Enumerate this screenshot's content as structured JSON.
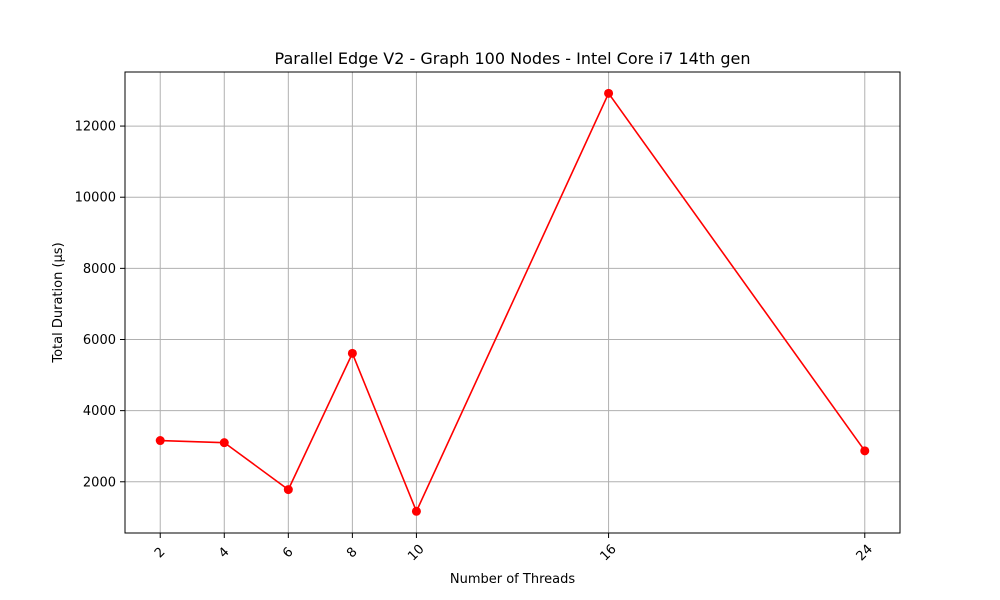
{
  "chart_data": {
    "type": "line",
    "title": "Parallel Edge V2 - Graph 100 Nodes - Intel Core i7 14th gen",
    "xlabel": "Number of Threads",
    "ylabel": "Total Duration (µs)",
    "x": [
      2,
      4,
      6,
      8,
      10,
      16,
      24
    ],
    "xticks": [
      "2",
      "4",
      "6",
      "8",
      "10",
      "16",
      "24"
    ],
    "xlim": [
      0.9,
      25.1
    ],
    "yticks": [
      "2000",
      "4000",
      "6000",
      "8000",
      "10000",
      "12000"
    ],
    "ytick_values": [
      2000,
      4000,
      6000,
      8000,
      10000,
      12000
    ],
    "ylim": [
      560,
      13520
    ],
    "grid": true,
    "series": [
      {
        "values": [
          3160,
          3100,
          1780,
          5610,
          1170,
          12920,
          2870
        ],
        "color": "#ff0000",
        "marker": "circle"
      }
    ]
  }
}
